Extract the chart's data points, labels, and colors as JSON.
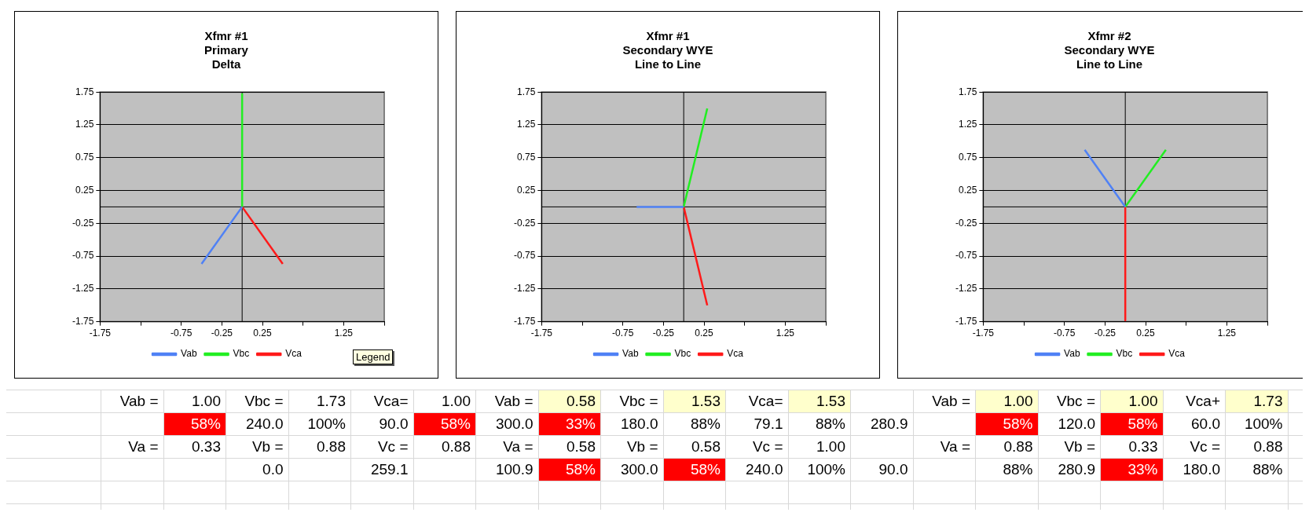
{
  "chart_data": [
    {
      "type": "line",
      "title": "Xfmr #1\nPrimary\nDelta",
      "xlim": [
        -1.75,
        1.75
      ],
      "ylim": [
        -1.75,
        1.75
      ],
      "xticks": [
        -1.75,
        {
          "value": -1.25,
          "label": null
        },
        -0.75,
        -0.25,
        0.25,
        {
          "value": 0.75,
          "label": null
        },
        1.25,
        {
          "value": 1.75,
          "label": null
        }
      ],
      "yticks": [
        -1.75,
        -1.25,
        -0.75,
        -0.25,
        0.25,
        0.75,
        1.25,
        1.75
      ],
      "grid": "y",
      "legend": "bottom",
      "marker": "none",
      "line_style": "solid",
      "annotations": [
        "Legend"
      ],
      "series": [
        {
          "name": "Vab",
          "color": "#4f81f5",
          "x": [
            0,
            -0.5
          ],
          "values": [
            0,
            -0.87
          ]
        },
        {
          "name": "Vbc",
          "color": "#22ee22",
          "x": [
            0,
            0
          ],
          "values": [
            0,
            1.73
          ]
        },
        {
          "name": "Vca",
          "color": "#ff1a1a",
          "x": [
            0,
            0.5
          ],
          "values": [
            0,
            -0.87
          ]
        }
      ]
    },
    {
      "type": "line",
      "title": "Xfmr #1\nSecondary WYE\nLine to Line",
      "xlim": [
        -1.75,
        1.75
      ],
      "ylim": [
        -1.75,
        1.75
      ],
      "xticks": [
        -1.75,
        {
          "value": -1.25,
          "label": null
        },
        -0.75,
        -0.25,
        0.25,
        {
          "value": 0.75,
          "label": null
        },
        1.25,
        {
          "value": 1.75,
          "label": null
        }
      ],
      "yticks": [
        -1.75,
        -1.25,
        -0.75,
        -0.25,
        0.25,
        0.75,
        1.25,
        1.75
      ],
      "grid": "y",
      "legend": "bottom",
      "marker": "none",
      "line_style": "solid",
      "series": [
        {
          "name": "Vab",
          "color": "#4f81f5",
          "x": [
            0,
            -0.58
          ],
          "values": [
            0,
            0
          ]
        },
        {
          "name": "Vbc",
          "color": "#22ee22",
          "x": [
            0,
            0.29
          ],
          "values": [
            0,
            1.5
          ]
        },
        {
          "name": "Vca",
          "color": "#ff1a1a",
          "x": [
            0,
            0.29
          ],
          "values": [
            0,
            -1.5
          ]
        }
      ]
    },
    {
      "type": "line",
      "title": "Xfmr #2\nSecondary WYE\nLine to Line",
      "xlim": [
        -1.75,
        1.75
      ],
      "ylim": [
        -1.75,
        1.75
      ],
      "xticks": [
        -1.75,
        {
          "value": -1.25,
          "label": null
        },
        -0.75,
        -0.25,
        0.25,
        {
          "value": 0.75,
          "label": null
        },
        1.25,
        {
          "value": 1.75,
          "label": null
        }
      ],
      "yticks": [
        -1.75,
        -1.25,
        -0.75,
        -0.25,
        0.25,
        0.75,
        1.25,
        1.75
      ],
      "grid": "y",
      "legend": "bottom",
      "marker": "none",
      "line_style": "solid",
      "series": [
        {
          "name": "Vab",
          "color": "#4f81f5",
          "x": [
            0,
            -0.5
          ],
          "values": [
            0,
            0.87
          ]
        },
        {
          "name": "Vbc",
          "color": "#22ee22",
          "x": [
            0,
            0.5
          ],
          "values": [
            0,
            0.87
          ]
        },
        {
          "name": "Vca",
          "color": "#ff1a1a",
          "x": [
            0,
            0
          ],
          "values": [
            0,
            -1.73
          ]
        }
      ]
    },
    {
      "type": "other",
      "annotations": [
        "Vab =",
        "1.00",
        "Vbc =",
        "1.73",
        "Vca=",
        "1.00",
        "Vab =",
        "0.58",
        "Vbc =",
        "1.53",
        "Vca=",
        "1.53",
        "Vab =",
        "1.00",
        "Vbc =",
        "1.00",
        "Vca+",
        "1.73",
        "58%",
        "240.0",
        "100%",
        "90.0",
        "58%",
        "300.0",
        "33%",
        "180.0",
        "88%",
        "79.1",
        "88%",
        "280.9",
        "58%",
        "120.0",
        "58%",
        "60.0",
        "100%",
        "Va =",
        "0.33",
        "Vb =",
        "0.88",
        "Vc =",
        "0.88",
        "Va =",
        "0.58",
        "Vb =",
        "0.58",
        "Vc =",
        "1.00",
        "Va =",
        "0.88",
        "Vb =",
        "0.33",
        "Vc =",
        "0.88",
        "0.0",
        "259.1",
        "100.9",
        "58%",
        "300.0",
        "58%",
        "240.0",
        "100%",
        "90.0",
        "88%",
        "280.9",
        "33%",
        "180.0",
        "88%"
      ]
    }
  ]
}
